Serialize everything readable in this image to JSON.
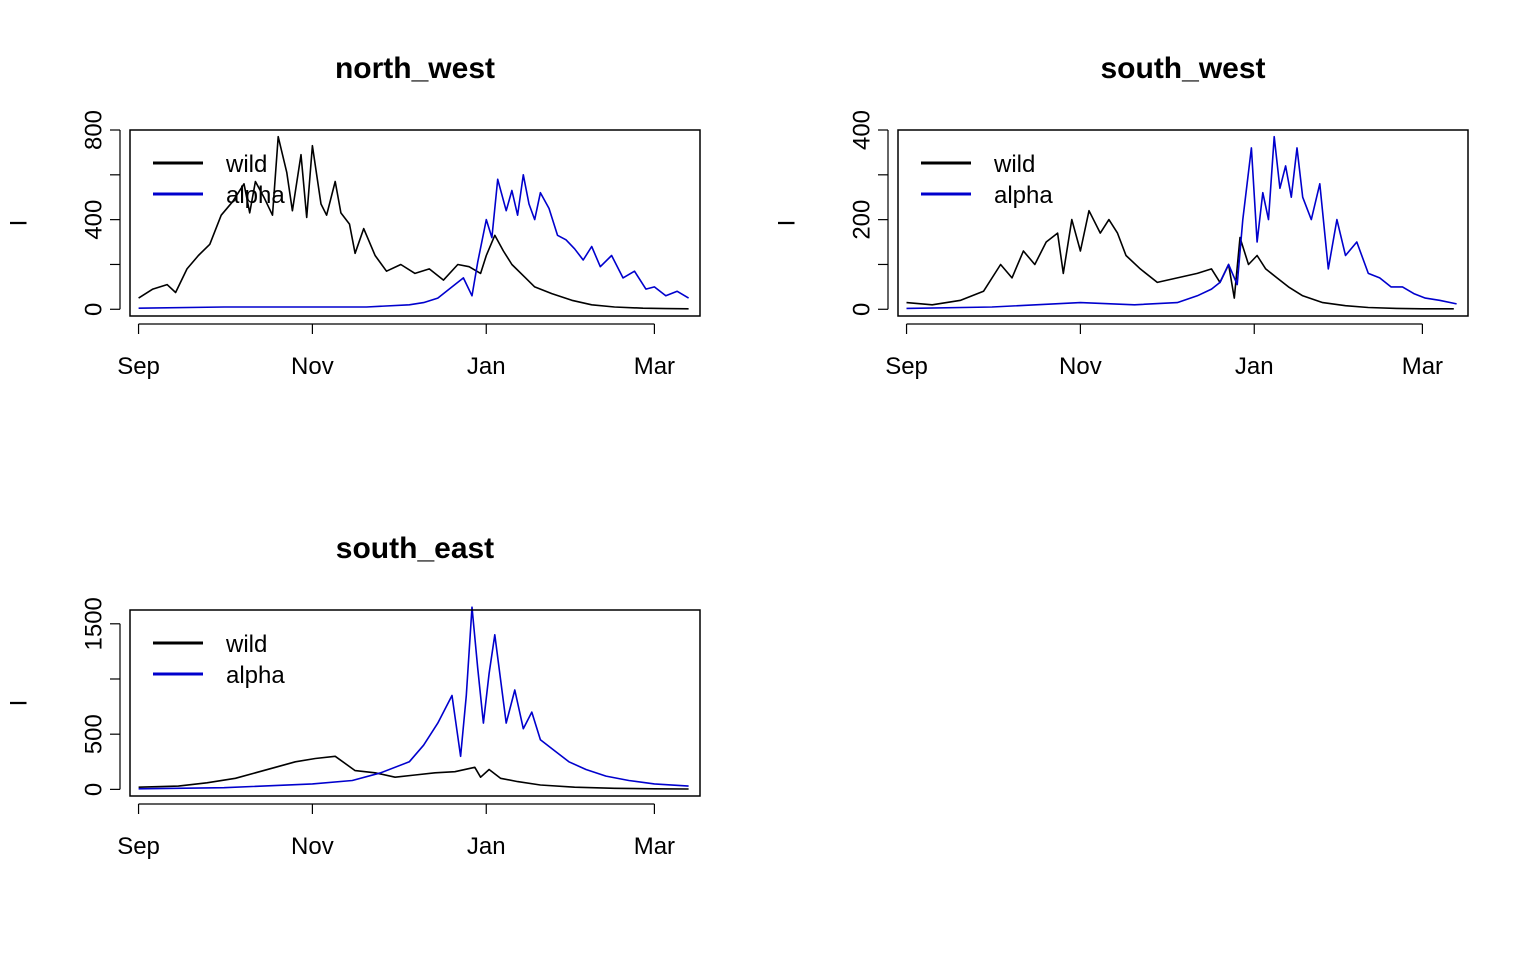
{
  "colors": {
    "wild": "#000000",
    "alpha": "#0000CD",
    "frame": "#000000",
    "background": "#ffffff"
  },
  "chart_data": [
    {
      "type": "line",
      "title": "north_west",
      "xlabel": "",
      "ylabel": "I",
      "x_ticks": [
        "Sep",
        "Nov",
        "Jan",
        "Mar"
      ],
      "x_tick_dates": [
        "2020-09-01",
        "2020-11-01",
        "2021-01-01",
        "2021-03-01"
      ],
      "xlim": [
        "2020-08-29",
        "2021-03-17"
      ],
      "y_ticks": [
        0,
        200,
        400,
        600,
        800
      ],
      "y_tick_labels": [
        "0",
        "",
        "400",
        "",
        "800"
      ],
      "ylim": [
        -30,
        800
      ],
      "legend_position": "top-left",
      "series": [
        {
          "name": "wild",
          "color": "#000000",
          "x": [
            "2020-09-01",
            "2020-09-06",
            "2020-09-11",
            "2020-09-14",
            "2020-09-18",
            "2020-09-22",
            "2020-09-26",
            "2020-09-30",
            "2020-10-04",
            "2020-10-08",
            "2020-10-10",
            "2020-10-12",
            "2020-10-15",
            "2020-10-18",
            "2020-10-20",
            "2020-10-23",
            "2020-10-25",
            "2020-10-28",
            "2020-10-30",
            "2020-11-01",
            "2020-11-04",
            "2020-11-06",
            "2020-11-09",
            "2020-11-11",
            "2020-11-14",
            "2020-11-16",
            "2020-11-19",
            "2020-11-23",
            "2020-11-27",
            "2020-12-02",
            "2020-12-07",
            "2020-12-12",
            "2020-12-17",
            "2020-12-22",
            "2020-12-26",
            "2020-12-30",
            "2021-01-01",
            "2021-01-04",
            "2021-01-07",
            "2021-01-10",
            "2021-01-14",
            "2021-01-18",
            "2021-01-24",
            "2021-01-31",
            "2021-02-07",
            "2021-02-15",
            "2021-02-25",
            "2021-03-05",
            "2021-03-13"
          ],
          "values": [
            50,
            90,
            110,
            75,
            180,
            240,
            290,
            420,
            480,
            560,
            430,
            570,
            500,
            420,
            770,
            610,
            440,
            690,
            410,
            730,
            470,
            420,
            570,
            430,
            380,
            250,
            360,
            240,
            170,
            200,
            160,
            180,
            130,
            200,
            190,
            160,
            240,
            330,
            260,
            200,
            150,
            100,
            70,
            40,
            20,
            10,
            5,
            3,
            2
          ]
        },
        {
          "name": "alpha",
          "color": "#0000CD",
          "x": [
            "2020-09-01",
            "2020-10-01",
            "2020-11-01",
            "2020-11-20",
            "2020-12-05",
            "2020-12-10",
            "2020-12-15",
            "2020-12-20",
            "2020-12-24",
            "2020-12-27",
            "2020-12-29",
            "2021-01-01",
            "2021-01-03",
            "2021-01-05",
            "2021-01-08",
            "2021-01-10",
            "2021-01-12",
            "2021-01-14",
            "2021-01-16",
            "2021-01-18",
            "2021-01-20",
            "2021-01-23",
            "2021-01-26",
            "2021-01-29",
            "2021-02-01",
            "2021-02-04",
            "2021-02-07",
            "2021-02-10",
            "2021-02-14",
            "2021-02-18",
            "2021-02-22",
            "2021-02-26",
            "2021-03-01",
            "2021-03-05",
            "2021-03-09",
            "2021-03-13"
          ],
          "values": [
            5,
            10,
            10,
            10,
            20,
            30,
            50,
            100,
            140,
            60,
            210,
            400,
            320,
            580,
            440,
            530,
            420,
            600,
            470,
            400,
            520,
            450,
            330,
            310,
            270,
            220,
            280,
            190,
            240,
            140,
            170,
            90,
            100,
            60,
            80,
            50
          ]
        }
      ]
    },
    {
      "type": "line",
      "title": "south_west",
      "xlabel": "",
      "ylabel": "I",
      "x_ticks": [
        "Sep",
        "Nov",
        "Jan",
        "Mar"
      ],
      "x_tick_dates": [
        "2020-09-01",
        "2020-11-01",
        "2021-01-01",
        "2021-03-01"
      ],
      "xlim": [
        "2020-08-29",
        "2021-03-17"
      ],
      "y_ticks": [
        0,
        100,
        200,
        300,
        400
      ],
      "y_tick_labels": [
        "0",
        "",
        "200",
        "",
        "400"
      ],
      "ylim": [
        -15,
        400
      ],
      "legend_position": "top-left",
      "series": [
        {
          "name": "wild",
          "color": "#000000",
          "x": [
            "2020-09-01",
            "2020-09-10",
            "2020-09-20",
            "2020-09-28",
            "2020-10-04",
            "2020-10-08",
            "2020-10-12",
            "2020-10-16",
            "2020-10-20",
            "2020-10-24",
            "2020-10-26",
            "2020-10-29",
            "2020-11-01",
            "2020-11-04",
            "2020-11-08",
            "2020-11-11",
            "2020-11-14",
            "2020-11-17",
            "2020-11-22",
            "2020-11-28",
            "2020-12-05",
            "2020-12-12",
            "2020-12-17",
            "2020-12-20",
            "2020-12-23",
            "2020-12-25",
            "2020-12-27",
            "2020-12-30",
            "2021-01-02",
            "2021-01-05",
            "2021-01-09",
            "2021-01-13",
            "2021-01-18",
            "2021-01-25",
            "2021-02-02",
            "2021-02-10",
            "2021-02-20",
            "2021-03-01",
            "2021-03-12"
          ],
          "values": [
            15,
            10,
            20,
            40,
            100,
            70,
            130,
            100,
            150,
            170,
            80,
            200,
            130,
            220,
            170,
            200,
            170,
            120,
            90,
            60,
            70,
            80,
            90,
            60,
            100,
            25,
            160,
            100,
            120,
            90,
            70,
            50,
            30,
            15,
            8,
            4,
            2,
            1,
            1
          ]
        },
        {
          "name": "alpha",
          "color": "#0000CD",
          "x": [
            "2020-09-01",
            "2020-10-01",
            "2020-11-01",
            "2020-11-20",
            "2020-12-05",
            "2020-12-12",
            "2020-12-17",
            "2020-12-20",
            "2020-12-23",
            "2020-12-26",
            "2020-12-28",
            "2020-12-31",
            "2021-01-02",
            "2021-01-04",
            "2021-01-06",
            "2021-01-08",
            "2021-01-10",
            "2021-01-12",
            "2021-01-14",
            "2021-01-16",
            "2021-01-18",
            "2021-01-21",
            "2021-01-24",
            "2021-01-27",
            "2021-01-30",
            "2021-02-02",
            "2021-02-06",
            "2021-02-10",
            "2021-02-14",
            "2021-02-18",
            "2021-02-22",
            "2021-02-26",
            "2021-03-02",
            "2021-03-07",
            "2021-03-13"
          ],
          "values": [
            2,
            5,
            15,
            10,
            15,
            30,
            45,
            60,
            100,
            55,
            200,
            360,
            150,
            260,
            200,
            385,
            270,
            320,
            250,
            360,
            250,
            200,
            280,
            90,
            200,
            120,
            150,
            80,
            70,
            50,
            50,
            35,
            25,
            20,
            12
          ]
        }
      ]
    },
    {
      "type": "line",
      "title": "south_east",
      "xlabel": "",
      "ylabel": "I",
      "x_ticks": [
        "Sep",
        "Nov",
        "Jan",
        "Mar"
      ],
      "x_tick_dates": [
        "2020-09-01",
        "2020-11-01",
        "2021-01-01",
        "2021-03-01"
      ],
      "xlim": [
        "2020-08-29",
        "2021-03-17"
      ],
      "y_ticks": [
        0,
        500,
        1000,
        1500
      ],
      "y_tick_labels": [
        "0",
        "500",
        "",
        "1500"
      ],
      "ylim": [
        -60,
        1625
      ],
      "legend_position": "top-left",
      "series": [
        {
          "name": "wild",
          "color": "#000000",
          "x": [
            "2020-09-01",
            "2020-09-15",
            "2020-09-25",
            "2020-10-05",
            "2020-10-12",
            "2020-10-19",
            "2020-10-26",
            "2020-11-02",
            "2020-11-09",
            "2020-11-16",
            "2020-11-23",
            "2020-11-30",
            "2020-12-07",
            "2020-12-14",
            "2020-12-21",
            "2020-12-28",
            "2020-12-30",
            "2021-01-02",
            "2021-01-06",
            "2021-01-12",
            "2021-01-20",
            "2021-02-01",
            "2021-02-15",
            "2021-03-01",
            "2021-03-13"
          ],
          "values": [
            20,
            30,
            60,
            100,
            150,
            200,
            250,
            280,
            300,
            170,
            150,
            110,
            130,
            150,
            160,
            200,
            110,
            180,
            100,
            70,
            40,
            20,
            10,
            5,
            3
          ]
        },
        {
          "name": "alpha",
          "color": "#0000CD",
          "x": [
            "2020-09-01",
            "2020-10-01",
            "2020-11-01",
            "2020-11-15",
            "2020-11-25",
            "2020-12-05",
            "2020-12-10",
            "2020-12-15",
            "2020-12-20",
            "2020-12-23",
            "2020-12-25",
            "2020-12-27",
            "2020-12-29",
            "2020-12-31",
            "2021-01-02",
            "2021-01-04",
            "2021-01-06",
            "2021-01-08",
            "2021-01-11",
            "2021-01-14",
            "2021-01-17",
            "2021-01-20",
            "2021-01-25",
            "2021-01-30",
            "2021-02-05",
            "2021-02-12",
            "2021-02-20",
            "2021-03-01",
            "2021-03-13"
          ],
          "values": [
            5,
            15,
            50,
            80,
            150,
            250,
            400,
            600,
            850,
            300,
            850,
            1650,
            1100,
            600,
            1050,
            1400,
            1000,
            600,
            900,
            550,
            700,
            450,
            350,
            250,
            180,
            120,
            80,
            50,
            30
          ]
        }
      ]
    }
  ]
}
